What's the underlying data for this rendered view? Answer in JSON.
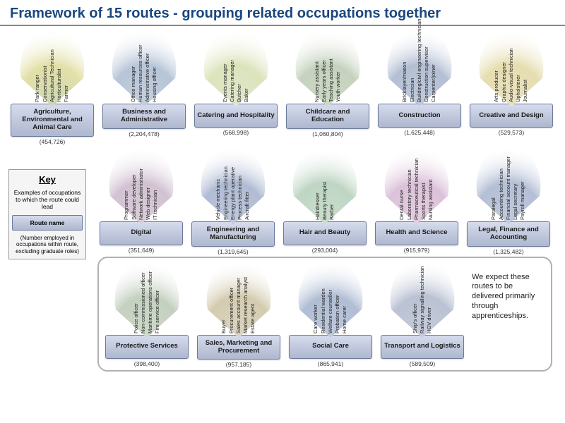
{
  "title": "Framework of 15 routes - grouping related occupations together",
  "title_color": "#1a4780",
  "key": {
    "title": "Key",
    "examples_text": "Examples of occupations to which the route could lead",
    "route_label": "Route name",
    "number_text": "(Number employed in occupations within route, excluding graduate roles)"
  },
  "apprenticeship_note": "We expect these routes to be delivered primarily through apprenticeships.",
  "label_box": {
    "bg_gradient_top": "#d6dced",
    "bg_gradient_bottom": "#aeb7cf",
    "border": "#6b7a9c"
  },
  "routes": [
    {
      "name": "Agriculture, Environmental and Animal Care",
      "count": "(454,726)",
      "fan_colors": [
        "#e3e0a8",
        "#cdd7b6"
      ],
      "occupations": [
        "Park ranger",
        "Conservationist",
        "Agricultural Technician",
        "Horticulturalist",
        "Farmer"
      ]
    },
    {
      "name": "Business and Administrative",
      "count": "(2,204,478)",
      "fan_colors": [
        "#b7c5d8",
        "#c5cfdd"
      ],
      "occupations": [
        "Office manager",
        "Human resources officer",
        "Administrative officer",
        "Housing officer"
      ]
    },
    {
      "name": "Catering and Hospitality",
      "count": "(568,998)",
      "fan_colors": [
        "#dce4bc",
        "#e0e6cc"
      ],
      "occupations": [
        "Events manager",
        "Catering manager",
        "Butcher",
        "Baker"
      ]
    },
    {
      "name": "Childcare and Education",
      "count": "(1,060,804)",
      "fan_colors": [
        "#c5d2bd",
        "#cedac7"
      ],
      "occupations": [
        "Nursery assistant",
        "Early years officer",
        "Teaching assistant",
        "Youth worker"
      ]
    },
    {
      "name": "Construction",
      "count": "(1,625,448)",
      "fan_colors": [
        "#b4bfd4",
        "#c2cbdc"
      ],
      "occupations": [
        "Bricklayer/mason",
        "Electrician",
        "Building/civil engineering technician",
        "Construction supervisor",
        "Carpenter/joiner"
      ]
    },
    {
      "name": "Creative and Design",
      "count": "(529,573)",
      "fan_colors": [
        "#e6ddb0",
        "#e9e3c3"
      ],
      "occupations": [
        "Arts producer",
        "Graphic designer",
        "Audio-visual technician",
        "Upholsterer",
        "Journalist"
      ]
    },
    {
      "name": "Digital",
      "count": "(351,649)",
      "fan_colors": [
        "#d2c2d2",
        "#dacdd9"
      ],
      "occupations": [
        "Programmer",
        "Software developer",
        "Network administrator",
        "Web designer",
        "IT technician"
      ]
    },
    {
      "name": "Engineering and Manufacturing",
      "count": "(1,319,645)",
      "fan_colors": [
        "#b0bcd4",
        "#c2cadc"
      ],
      "occupations": [
        "Vehicle mechanic",
        "Engineering technician",
        "Energy plant operative",
        "Process technician",
        "Aircraft fitter"
      ]
    },
    {
      "name": "Hair and Beauty",
      "count": "(293,004)",
      "fan_colors": [
        "#bfd6c4",
        "#ccdece"
      ],
      "occupations": [
        "Hairdresser",
        "Beauty therapist",
        "Barber"
      ]
    },
    {
      "name": "Health and Science",
      "count": "(915,979)",
      "fan_colors": [
        "#dcc2d9",
        "#e3cfe0"
      ],
      "occupations": [
        "Dental nurse",
        "Laboratory technician",
        "Pharmaceutical technician",
        "Sports therapist",
        "Nursing assistant"
      ]
    },
    {
      "name": "Legal, Finance and Accounting",
      "count": "(1,325,482)",
      "fan_colors": [
        "#b4bfd6",
        "#c3cbdd"
      ],
      "occupations": [
        "Paralegal",
        "Accounting technician",
        "Financial account manager",
        "Legal secretary",
        "Payroll manager"
      ]
    },
    {
      "name": "Protective Services",
      "count": "(398,400)",
      "fan_colors": [
        "#c4d0c0",
        "#cfd9cb"
      ],
      "occupations": [
        "Police officer",
        "Non-commissioned officer",
        "Maritime operations officer",
        "Fire service officer"
      ]
    },
    {
      "name": "Sales, Marketing and Procurement",
      "count": "(957,185)",
      "fan_colors": [
        "#d4cbb0",
        "#dcd5c1"
      ],
      "occupations": [
        "Buyer",
        "Procurement officer",
        "Sales account manager",
        "Market research analyst",
        "Estate agent"
      ]
    },
    {
      "name": "Social Care",
      "count": "(865,941)",
      "fan_colors": [
        "#b0bdd4",
        "#c0c9dc"
      ],
      "occupations": [
        "Care worker",
        "Residential warden",
        "Welfare counsellor",
        "Probation officer",
        "Home carer"
      ]
    },
    {
      "name": "Transport and Logistics",
      "count": "(589,509)",
      "fan_colors": [
        "#bac2d3",
        "#c7cddb"
      ],
      "occupations": [
        "Ship's officer",
        "Railway signalling technician",
        "HGV driver"
      ]
    }
  ],
  "layout": {
    "row1": [
      0,
      1,
      2,
      3,
      4,
      5
    ],
    "row2": [
      6,
      7,
      8,
      9,
      10
    ],
    "row3": [
      11,
      12,
      13,
      14
    ]
  }
}
